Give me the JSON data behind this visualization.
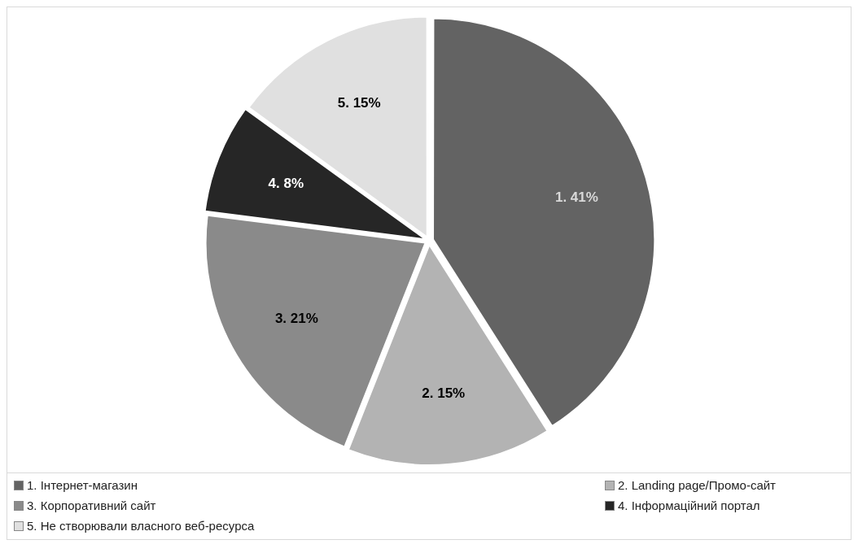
{
  "chart_data": {
    "type": "pie",
    "categories": [
      "1. Інтернет-магазин",
      "2. Landing page/Промо-сайт",
      "3. Корпоративний сайт",
      "4. Інформаційний портал",
      "5. Не створювали власного веб-ресурса"
    ],
    "values": [
      41,
      15,
      21,
      8,
      15
    ],
    "colors": [
      "#636363",
      "#b3b3b3",
      "#8a8a8a",
      "#262626",
      "#e0e0e0"
    ],
    "value_labels": [
      "1. 41%",
      "2. 15%",
      "3. 21%",
      "4. 8%",
      "5. 15%"
    ],
    "legend": "bottom"
  }
}
